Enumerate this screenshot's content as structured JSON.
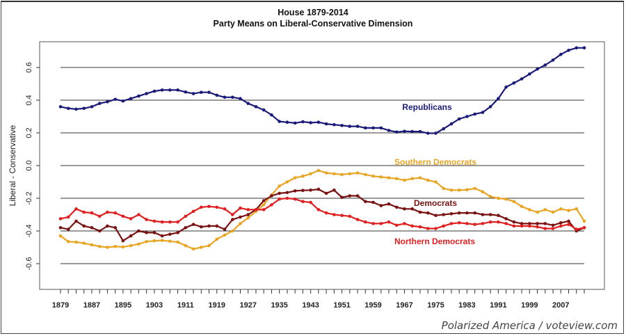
{
  "chart_data": {
    "type": "line",
    "title": "House 1879-2014",
    "subtitle": "Party Means on Liberal-Conservative Dimension",
    "xlabel": "",
    "ylabel": "Liberal - Conservative",
    "xlim": [
      1879,
      2013
    ],
    "ylim": [
      -0.76,
      0.76
    ],
    "grid": true,
    "yticks": [
      0.6,
      0.4,
      0.2,
      0.0,
      -0.2,
      -0.4,
      -0.6
    ],
    "ytick_labels": [
      "0.6",
      "0.4",
      "0.2",
      "0.0",
      "-0.2",
      "-0.4",
      "-0.6"
    ],
    "xtick_labels": [
      "1879",
      "1887",
      "1895",
      "1903",
      "1911",
      "1919",
      "1927",
      "1935",
      "1943",
      "1951",
      "1959",
      "1967",
      "1975",
      "1983",
      "1991",
      "1999",
      "2007"
    ],
    "x_start": 1879,
    "x_step": 2,
    "legend": "inline-labels",
    "series": [
      {
        "name": "Republicans",
        "label_position": "center-right",
        "color": "#1a1a7a",
        "values": [
          0.36,
          0.35,
          0.345,
          0.35,
          0.36,
          0.38,
          0.39,
          0.405,
          0.395,
          0.41,
          0.425,
          0.44,
          0.455,
          0.462,
          0.462,
          0.462,
          0.45,
          0.44,
          0.448,
          0.448,
          0.43,
          0.418,
          0.418,
          0.41,
          0.38,
          0.36,
          0.34,
          0.31,
          0.27,
          0.265,
          0.26,
          0.268,
          0.262,
          0.265,
          0.255,
          0.25,
          0.245,
          0.24,
          0.24,
          0.23,
          0.23,
          0.23,
          0.215,
          0.205,
          0.21,
          0.208,
          0.208,
          0.198,
          0.198,
          0.225,
          0.255,
          0.285,
          0.3,
          0.315,
          0.325,
          0.36,
          0.41,
          0.48,
          0.505,
          0.53,
          0.56,
          0.59,
          0.615,
          0.645,
          0.68,
          0.705,
          0.72,
          0.72
        ]
      },
      {
        "name": "Southern Democrats",
        "label_position": "center",
        "color": "#e8a524",
        "values": [
          -0.43,
          -0.465,
          -0.468,
          -0.475,
          -0.485,
          -0.495,
          -0.5,
          -0.495,
          -0.498,
          -0.49,
          -0.48,
          -0.465,
          -0.46,
          -0.458,
          -0.463,
          -0.468,
          -0.49,
          -0.51,
          -0.5,
          -0.49,
          -0.45,
          -0.425,
          -0.4,
          -0.355,
          -0.32,
          -0.28,
          -0.24,
          -0.18,
          -0.125,
          -0.1,
          -0.075,
          -0.065,
          -0.05,
          -0.03,
          -0.045,
          -0.05,
          -0.055,
          -0.05,
          -0.045,
          -0.055,
          -0.065,
          -0.07,
          -0.075,
          -0.08,
          -0.09,
          -0.08,
          -0.075,
          -0.09,
          -0.1,
          -0.14,
          -0.15,
          -0.15,
          -0.148,
          -0.14,
          -0.16,
          -0.19,
          -0.2,
          -0.205,
          -0.22,
          -0.25,
          -0.27,
          -0.285,
          -0.27,
          -0.285,
          -0.265,
          -0.275,
          -0.265,
          -0.34
        ]
      },
      {
        "name": "Democrats",
        "label_position": "center",
        "color": "#7a1010",
        "values": [
          -0.38,
          -0.39,
          -0.34,
          -0.37,
          -0.38,
          -0.4,
          -0.37,
          -0.38,
          -0.46,
          -0.43,
          -0.4,
          -0.41,
          -0.41,
          -0.43,
          -0.42,
          -0.41,
          -0.38,
          -0.36,
          -0.375,
          -0.37,
          -0.37,
          -0.39,
          -0.33,
          -0.315,
          -0.3,
          -0.27,
          -0.215,
          -0.185,
          -0.17,
          -0.165,
          -0.155,
          -0.152,
          -0.15,
          -0.145,
          -0.17,
          -0.15,
          -0.195,
          -0.185,
          -0.185,
          -0.22,
          -0.225,
          -0.245,
          -0.235,
          -0.255,
          -0.265,
          -0.265,
          -0.285,
          -0.29,
          -0.305,
          -0.3,
          -0.295,
          -0.29,
          -0.29,
          -0.29,
          -0.3,
          -0.3,
          -0.305,
          -0.325,
          -0.345,
          -0.355,
          -0.355,
          -0.355,
          -0.355,
          -0.365,
          -0.35,
          -0.34,
          -0.4,
          -0.38
        ]
      },
      {
        "name": "Northern Democrats",
        "label_position": "center",
        "color": "#e02020",
        "values": [
          -0.325,
          -0.315,
          -0.265,
          -0.285,
          -0.29,
          -0.31,
          -0.285,
          -0.29,
          -0.31,
          -0.325,
          -0.3,
          -0.33,
          -0.34,
          -0.345,
          -0.345,
          -0.345,
          -0.31,
          -0.28,
          -0.255,
          -0.25,
          -0.255,
          -0.265,
          -0.3,
          -0.26,
          -0.27,
          -0.27,
          -0.27,
          -0.24,
          -0.205,
          -0.2,
          -0.205,
          -0.22,
          -0.225,
          -0.27,
          -0.29,
          -0.3,
          -0.305,
          -0.31,
          -0.33,
          -0.345,
          -0.355,
          -0.355,
          -0.345,
          -0.365,
          -0.355,
          -0.37,
          -0.375,
          -0.385,
          -0.385,
          -0.37,
          -0.355,
          -0.35,
          -0.355,
          -0.36,
          -0.355,
          -0.345,
          -0.345,
          -0.355,
          -0.37,
          -0.37,
          -0.37,
          -0.375,
          -0.385,
          -0.385,
          -0.37,
          -0.36,
          -0.39,
          -0.38
        ]
      }
    ],
    "annotations": [
      "Polarized America / voteview.com"
    ]
  },
  "credit": "Polarized America / voteview.com"
}
